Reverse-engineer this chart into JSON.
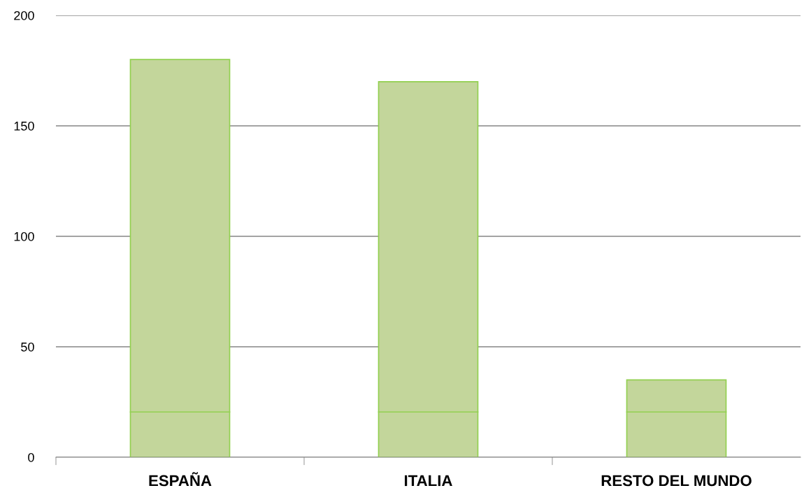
{
  "chart_data": {
    "type": "bar",
    "stacked": true,
    "categories": [
      "ESPAÑA",
      "ITALIA",
      "RESTO DEL MUNDO"
    ],
    "series": [
      {
        "color": "#c3d69b",
        "values": [
          20.5,
          20.5,
          20.5
        ]
      },
      {
        "color": "#c3d69b",
        "values": [
          159.5,
          149.5,
          14.5
        ]
      }
    ],
    "ylim": [
      0,
      200
    ],
    "yticks": [
      0,
      50,
      100,
      150,
      200
    ],
    "grid": "y",
    "legend": false
  }
}
